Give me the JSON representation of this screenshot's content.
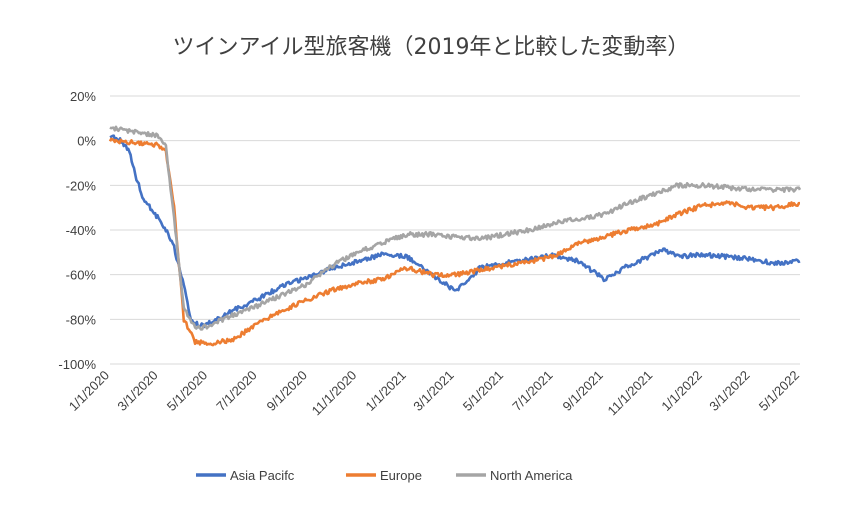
{
  "chart_data": {
    "type": "line",
    "title": "ツインアイル型旅客機（2019年と比較した変動率）",
    "xlabel": "",
    "ylabel": "",
    "ylim": [
      -100,
      20
    ],
    "y_ticks": [
      "20%",
      "0%",
      "-20%",
      "-40%",
      "-60%",
      "-80%",
      "-100%"
    ],
    "y_tick_values": [
      20,
      0,
      -20,
      -40,
      -60,
      -80,
      -100
    ],
    "x_ticks": [
      "1/1/2020",
      "3/1/2020",
      "5/1/2020",
      "7/1/2020",
      "9/1/2020",
      "11/1/2020",
      "1/1/2021",
      "3/1/2021",
      "5/1/2021",
      "7/1/2021",
      "9/1/2021",
      "11/1/2021",
      "1/1/2022",
      "3/1/2022",
      "5/1/2022"
    ],
    "x_range": [
      "1/1/2020",
      "5/1/2022"
    ],
    "grid": true,
    "legend": "bottom",
    "series": [
      {
        "name": "Asia Pacifc",
        "color": "#4472c4",
        "points": [
          [
            "1/1/2020",
            2
          ],
          [
            "1/15/2020",
            0
          ],
          [
            "1/25/2020",
            -5
          ],
          [
            "2/1/2020",
            -15
          ],
          [
            "2/10/2020",
            -25
          ],
          [
            "2/20/2020",
            -30
          ],
          [
            "3/1/2020",
            -35
          ],
          [
            "3/10/2020",
            -40
          ],
          [
            "3/20/2020",
            -48
          ],
          [
            "4/1/2020",
            -65
          ],
          [
            "4/10/2020",
            -80
          ],
          [
            "4/20/2020",
            -83
          ],
          [
            "5/1/2020",
            -82
          ],
          [
            "6/1/2020",
            -76
          ],
          [
            "7/1/2020",
            -71
          ],
          [
            "8/1/2020",
            -65
          ],
          [
            "9/1/2020",
            -61
          ],
          [
            "10/1/2020",
            -57
          ],
          [
            "11/1/2020",
            -54
          ],
          [
            "12/1/2020",
            -51
          ],
          [
            "1/1/2021",
            -52
          ],
          [
            "2/1/2021",
            -60
          ],
          [
            "3/1/2021",
            -67
          ],
          [
            "3/15/2021",
            -64
          ],
          [
            "4/1/2021",
            -57
          ],
          [
            "5/1/2021",
            -55
          ],
          [
            "6/1/2021",
            -53
          ],
          [
            "7/1/2021",
            -51
          ],
          [
            "8/1/2021",
            -54
          ],
          [
            "9/1/2021",
            -62
          ],
          [
            "10/1/2021",
            -56
          ],
          [
            "11/1/2021",
            -51
          ],
          [
            "11/15/2021",
            -49
          ],
          [
            "12/1/2021",
            -52
          ],
          [
            "1/1/2022",
            -51
          ],
          [
            "2/1/2022",
            -52
          ],
          [
            "3/1/2022",
            -53
          ],
          [
            "4/1/2022",
            -55
          ],
          [
            "5/1/2022",
            -54
          ]
        ]
      },
      {
        "name": "Europe",
        "color": "#ed7d31",
        "points": [
          [
            "1/1/2020",
            0
          ],
          [
            "2/1/2020",
            -1
          ],
          [
            "3/1/2020",
            -2
          ],
          [
            "3/10/2020",
            -5
          ],
          [
            "3/20/2020",
            -30
          ],
          [
            "4/1/2020",
            -80
          ],
          [
            "4/15/2020",
            -90
          ],
          [
            "5/1/2020",
            -91
          ],
          [
            "6/1/2020",
            -89
          ],
          [
            "7/1/2020",
            -82
          ],
          [
            "8/1/2020",
            -76
          ],
          [
            "9/1/2020",
            -71
          ],
          [
            "10/1/2020",
            -67
          ],
          [
            "11/1/2020",
            -64
          ],
          [
            "12/1/2020",
            -62
          ],
          [
            "1/1/2021",
            -57
          ],
          [
            "2/1/2021",
            -60
          ],
          [
            "3/1/2021",
            -60
          ],
          [
            "4/1/2021",
            -58
          ],
          [
            "5/1/2021",
            -56
          ],
          [
            "6/1/2021",
            -54
          ],
          [
            "7/1/2021",
            -52
          ],
          [
            "8/1/2021",
            -46
          ],
          [
            "9/1/2021",
            -43
          ],
          [
            "10/1/2021",
            -40
          ],
          [
            "11/1/2021",
            -38
          ],
          [
            "12/1/2021",
            -33
          ],
          [
            "1/1/2022",
            -29
          ],
          [
            "2/1/2022",
            -28
          ],
          [
            "3/1/2022",
            -30
          ],
          [
            "4/1/2022",
            -30
          ],
          [
            "5/1/2022",
            -28
          ]
        ]
      },
      {
        "name": "North America",
        "color": "#a5a5a5",
        "points": [
          [
            "1/1/2020",
            6
          ],
          [
            "2/1/2020",
            4
          ],
          [
            "3/1/2020",
            2
          ],
          [
            "3/10/2020",
            -3
          ],
          [
            "3/20/2020",
            -35
          ],
          [
            "4/1/2020",
            -75
          ],
          [
            "4/15/2020",
            -84
          ],
          [
            "5/1/2020",
            -83
          ],
          [
            "6/1/2020",
            -78
          ],
          [
            "7/1/2020",
            -74
          ],
          [
            "8/1/2020",
            -69
          ],
          [
            "9/1/2020",
            -64
          ],
          [
            "10/1/2020",
            -56
          ],
          [
            "11/1/2020",
            -50
          ],
          [
            "12/1/2020",
            -46
          ],
          [
            "1/1/2021",
            -42
          ],
          [
            "2/1/2021",
            -42
          ],
          [
            "3/1/2021",
            -43
          ],
          [
            "4/1/2021",
            -44
          ],
          [
            "5/1/2021",
            -42
          ],
          [
            "6/1/2021",
            -40
          ],
          [
            "7/1/2021",
            -37
          ],
          [
            "8/1/2021",
            -35
          ],
          [
            "9/1/2021",
            -33
          ],
          [
            "10/1/2021",
            -28
          ],
          [
            "11/1/2021",
            -24
          ],
          [
            "12/1/2021",
            -20
          ],
          [
            "1/1/2022",
            -20
          ],
          [
            "2/1/2022",
            -21
          ],
          [
            "3/1/2022",
            -22
          ],
          [
            "4/1/2022",
            -22
          ],
          [
            "5/1/2022",
            -22
          ]
        ]
      }
    ]
  }
}
